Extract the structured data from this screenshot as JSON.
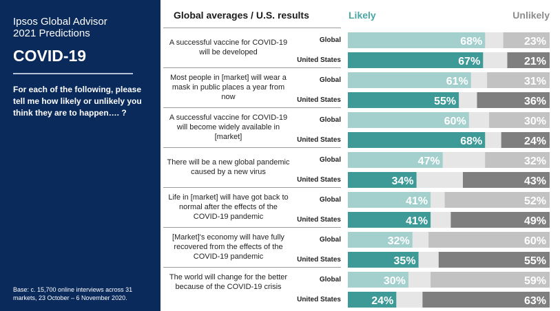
{
  "sidebar": {
    "org_title": "Ipsos Global Advisor",
    "subtitle": "2021 Predictions",
    "topic": "COVID-19",
    "question": "For each of the following, please tell me how likely or unlikely you think they are to happen…. ?",
    "base": "Base: c. 15,700 online interviews across 31 markets,  23 October – 6 November 2020."
  },
  "header": {
    "title": "Global averages / U.S. results",
    "likely": "Likely",
    "unlikely": "Unlikely"
  },
  "colors": {
    "sidebar_bg": "#0a2a5c",
    "likely_global": "#a3cfcd",
    "likely_us": "#3d9a97",
    "neutral": "#e6e6e6",
    "unlikely_global": "#c2c2c2",
    "unlikely_us": "#7f7f7f",
    "likely_header": "#4aa6a3",
    "unlikely_header": "#8c8c8c"
  },
  "chart_data": {
    "type": "bar",
    "stacked": true,
    "orientation": "horizontal",
    "title": "Global averages / U.S. results",
    "series_names": [
      "Likely",
      "Unlikely"
    ],
    "groups": [
      {
        "label": "A successful vaccine for COVID-19 will be developed",
        "rows": [
          {
            "name": "Global",
            "likely": 68,
            "unlikely": 23
          },
          {
            "name": "United States",
            "likely": 67,
            "unlikely": 21
          }
        ]
      },
      {
        "label": "Most people in [market] will wear a mask in public places a year from now",
        "rows": [
          {
            "name": "Global",
            "likely": 61,
            "unlikely": 31
          },
          {
            "name": "United States",
            "likely": 55,
            "unlikely": 36
          }
        ]
      },
      {
        "label": "A successful vaccine for COVID-19 will become widely available in [market]",
        "rows": [
          {
            "name": "Global",
            "likely": 60,
            "unlikely": 30
          },
          {
            "name": "United States",
            "likely": 68,
            "unlikely": 24
          }
        ]
      },
      {
        "label": "There will be a new global pandemic caused by a new virus",
        "rows": [
          {
            "name": "Global",
            "likely": 47,
            "unlikely": 32
          },
          {
            "name": "United States",
            "likely": 34,
            "unlikely": 43
          }
        ]
      },
      {
        "label": "Life in [market] will have got back to normal after the effects of the COVID-19 pandemic",
        "rows": [
          {
            "name": "Global",
            "likely": 41,
            "unlikely": 52
          },
          {
            "name": "United States",
            "likely": 41,
            "unlikely": 49
          }
        ]
      },
      {
        "label": "[Market]'s economy will have fully recovered from the effects of the COVID-19 pandemic",
        "rows": [
          {
            "name": "Global",
            "likely": 32,
            "unlikely": 60
          },
          {
            "name": "United States",
            "likely": 35,
            "unlikely": 55
          }
        ]
      },
      {
        "label": "The world will change for the better because of the COVID-19 crisis",
        "rows": [
          {
            "name": "Global",
            "likely": 30,
            "unlikely": 59
          },
          {
            "name": "United States",
            "likely": 24,
            "unlikely": 63
          }
        ]
      }
    ]
  }
}
